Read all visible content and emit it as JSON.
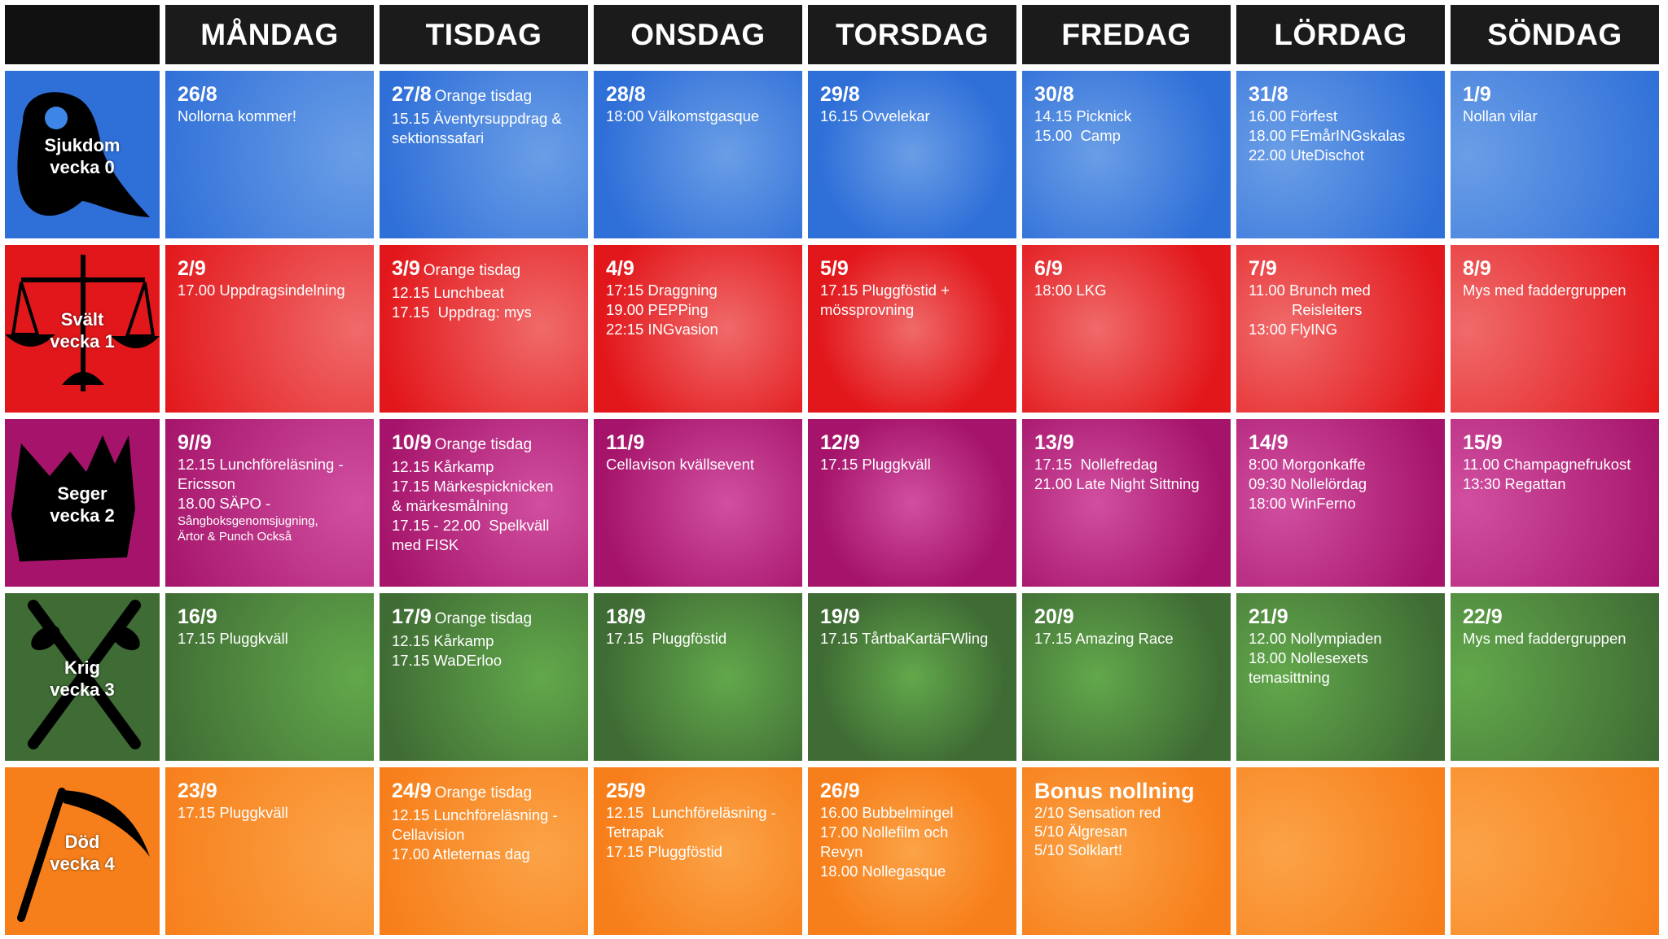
{
  "header": {
    "days": [
      "MÅNDAG",
      "TISDAG",
      "ONSDAG",
      "TORSDAG",
      "FREDAG",
      "LÖRDAG",
      "SÖNDAG"
    ]
  },
  "weeks": [
    {
      "name": "Sjukdom",
      "week_label": "vecka 0",
      "icon": "plague-mask-icon",
      "color": "#2f6fd8",
      "light": "#6a9ee6",
      "days": [
        {
          "date": "26/8",
          "tag": "",
          "events": [
            "Nollorna kommer!"
          ]
        },
        {
          "date": "27/8",
          "tag": "Orange tisdag",
          "events": [
            "15.15 Äventyrsuppdrag &",
            "sektionssafari"
          ]
        },
        {
          "date": "28/8",
          "tag": "",
          "events": [
            "18:00 Välkomstgasque"
          ]
        },
        {
          "date": "29/8",
          "tag": "",
          "events": [
            "16.15 Ovvelekar"
          ]
        },
        {
          "date": "30/8",
          "tag": "",
          "events": [
            "14.15 Picknick",
            "15.00  Camp"
          ]
        },
        {
          "date": "31/8",
          "tag": "",
          "events": [
            "16.00 Förfest",
            "18.00 FEmårINGskalas",
            "22.00 UteDischot"
          ]
        },
        {
          "date": "1/9",
          "tag": "",
          "events": [
            "Nollan vilar"
          ]
        }
      ]
    },
    {
      "name": "Svält",
      "week_label": "vecka 1",
      "icon": "scales-icon",
      "color": "#e2171b",
      "light": "#f06a6a",
      "days": [
        {
          "date": "2/9",
          "tag": "",
          "events": [
            "17.00 Uppdragsindelning"
          ]
        },
        {
          "date": "3/9",
          "tag": "Orange tisdag",
          "events": [
            "12.15 Lunchbeat",
            "17.15  Uppdrag: mys"
          ]
        },
        {
          "date": "4/9",
          "tag": "",
          "events": [
            "17:15 Draggning",
            "19.00 PEPPing",
            "22:15 INGvasion"
          ]
        },
        {
          "date": "5/9",
          "tag": "",
          "events": [
            "17.15 Pluggföstid +",
            "mössprovning"
          ]
        },
        {
          "date": "6/9",
          "tag": "",
          "events": [
            "18:00 LKG"
          ]
        },
        {
          "date": "7/9",
          "tag": "",
          "events": [
            "11.00 Brunch med",
            "Reisleiters",
            "13:00 FlyING"
          ]
        },
        {
          "date": "8/9",
          "tag": "",
          "events": [
            "Mys med faddergruppen"
          ]
        }
      ]
    },
    {
      "name": "Seger",
      "week_label": "vecka 2",
      "icon": "crown-icon",
      "color": "#a5146a",
      "light": "#d14fa0",
      "days": [
        {
          "date": "9//9",
          "tag": "",
          "events": [
            "12.15 Lunchföreläsning -",
            "Ericsson",
            "18.00 SÄPO -"
          ],
          "small": [
            "Sångboksgenomsjugning,",
            "Ärtor & Punch Också"
          ]
        },
        {
          "date": "10/9",
          "tag": "Orange tisdag",
          "events": [
            "12.15 Kårkamp",
            "17.15 Märkespicknicken",
            "& märkesmålning",
            "17.15 - 22.00  Spelkväll",
            "med FISK"
          ]
        },
        {
          "date": "11/9",
          "tag": "",
          "events": [
            "Cellavison kvällsevent"
          ]
        },
        {
          "date": "12/9",
          "tag": "",
          "events": [
            "17.15 Pluggkväll"
          ]
        },
        {
          "date": "13/9",
          "tag": "",
          "events": [
            "17.15  Nollefredag",
            "21.00 Late Night Sittning"
          ]
        },
        {
          "date": "14/9",
          "tag": "",
          "events": [
            "8:00 Morgonkaffe",
            "09:30 Nollelördag",
            "18:00 WinFerno"
          ]
        },
        {
          "date": "15/9",
          "tag": "",
          "events": [
            "11.00 Champagnefrukost",
            "13:30 Regattan"
          ]
        }
      ]
    },
    {
      "name": "Krig",
      "week_label": "vecka 3",
      "icon": "crossed-swords-icon",
      "color": "#3f6b34",
      "light": "#62a84b",
      "days": [
        {
          "date": "16/9",
          "tag": "",
          "events": [
            "17.15 Pluggkväll"
          ]
        },
        {
          "date": "17/9",
          "tag": "Orange tisdag",
          "events": [
            "12.15 Kårkamp",
            "17.15 WaDErloo"
          ]
        },
        {
          "date": "18/9",
          "tag": "",
          "events": [
            "17.15  Pluggföstid"
          ]
        },
        {
          "date": "19/9",
          "tag": "",
          "events": [
            "17.15 TårtbaKartäFWling"
          ]
        },
        {
          "date": "20/9",
          "tag": "",
          "events": [
            "17.15 Amazing Race"
          ]
        },
        {
          "date": "21/9",
          "tag": "",
          "events": [
            "12.00 Nollympiaden",
            "18.00 Nollesexets",
            "temasittning"
          ]
        },
        {
          "date": "22/9",
          "tag": "",
          "events": [
            "Mys med faddergruppen"
          ]
        }
      ]
    },
    {
      "name": "Död",
      "week_label": "vecka 4",
      "icon": "scythe-icon",
      "color": "#f77f1b",
      "light": "#fba347",
      "days": [
        {
          "date": "23/9",
          "tag": "",
          "events": [
            "17.15 Pluggkväll"
          ]
        },
        {
          "date": "24/9",
          "tag": "Orange tisdag",
          "events": [
            "12.15 Lunchföreläsning -",
            "Cellavision",
            "17.00 Atleternas dag"
          ]
        },
        {
          "date": "25/9",
          "tag": "",
          "events": [
            "12.15  Lunchföreläsning -",
            "Tetrapak",
            "17.15 Pluggföstid"
          ]
        },
        {
          "date": "26/9",
          "tag": "",
          "events": [
            "16.00 Bubbelmingel",
            "17.00 Nollefilm och",
            "Revyn",
            "18.00 Nollegasque"
          ]
        },
        {
          "date": "Bonus nollning",
          "tag": "",
          "events": [
            "2/10 Sensation red",
            "5/10 Älgresan",
            "5/10 Solklart!"
          ]
        },
        {
          "date": "",
          "tag": "",
          "events": []
        },
        {
          "date": "",
          "tag": "",
          "events": []
        }
      ]
    }
  ]
}
